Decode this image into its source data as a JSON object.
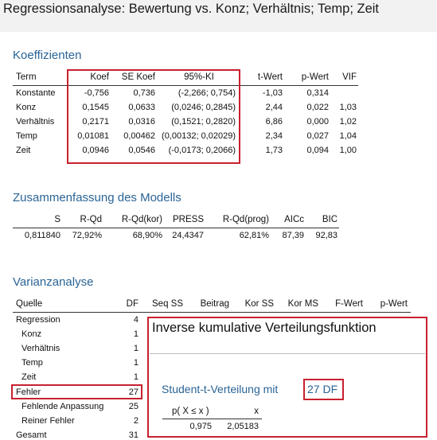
{
  "title": "Regressionsanalyse: Bewertung vs. Konz; Verhältnis; Temp; Zeit",
  "coefficients": {
    "heading": "Koeffizienten",
    "columns": [
      "Term",
      "Koef",
      "SE Koef",
      "95%-KI",
      "t-Wert",
      "p-Wert",
      "VIF"
    ],
    "rows": [
      [
        "Konstante",
        "-0,756",
        "0,736",
        "(-2,266; 0,754)",
        "-1,03",
        "0,314",
        ""
      ],
      [
        "Konz",
        "0,1545",
        "0,0633",
        "(0,0246; 0,2845)",
        "2,44",
        "0,022",
        "1,03"
      ],
      [
        "Verhältnis",
        "0,2171",
        "0,0316",
        "(0,1521; 0,2820)",
        "6,86",
        "0,000",
        "1,02"
      ],
      [
        "Temp",
        "0,01081",
        "0,00462",
        "(0,00132; 0,02029)",
        "2,34",
        "0,027",
        "1,04"
      ],
      [
        "Zeit",
        "0,0946",
        "0,0546",
        "(-0,0173; 0,2066)",
        "1,73",
        "0,094",
        "1,00"
      ]
    ]
  },
  "model_summary": {
    "heading": "Zusammenfassung des Modells",
    "columns": [
      "S",
      "R-Qd",
      "R-Qd(kor)",
      "PRESS",
      "R-Qd(prog)",
      "AICc",
      "BIC"
    ],
    "values": [
      "0,811840",
      "72,92%",
      "68,90%",
      "24,4347",
      "62,81%",
      "87,39",
      "92,83"
    ]
  },
  "anova": {
    "heading": "Varianzanalyse",
    "columns": [
      "Quelle",
      "DF",
      "Seq SS",
      "Beitrag",
      "Kor SS",
      "Kor MS",
      "F-Wert",
      "p-Wert"
    ],
    "rows": [
      [
        "Regression",
        "4"
      ],
      [
        "Konz",
        "1"
      ],
      [
        "Verhältnis",
        "1"
      ],
      [
        "Temp",
        "1"
      ],
      [
        "Zeit",
        "1"
      ],
      [
        "Fehler",
        "27"
      ],
      [
        "Fehlende Anpassung",
        "25"
      ],
      [
        "Reiner Fehler",
        "2"
      ],
      [
        "Gesamt",
        "31"
      ]
    ]
  },
  "popup": {
    "title": "Inverse kumulative Verteilungsfunktion",
    "subtitle_prefix": "Student-t-Verteilung mit",
    "df_label": "27 DF",
    "columns": [
      "p( X ≤ x )",
      "x"
    ],
    "values": [
      "0,975",
      "2,05183"
    ]
  }
}
